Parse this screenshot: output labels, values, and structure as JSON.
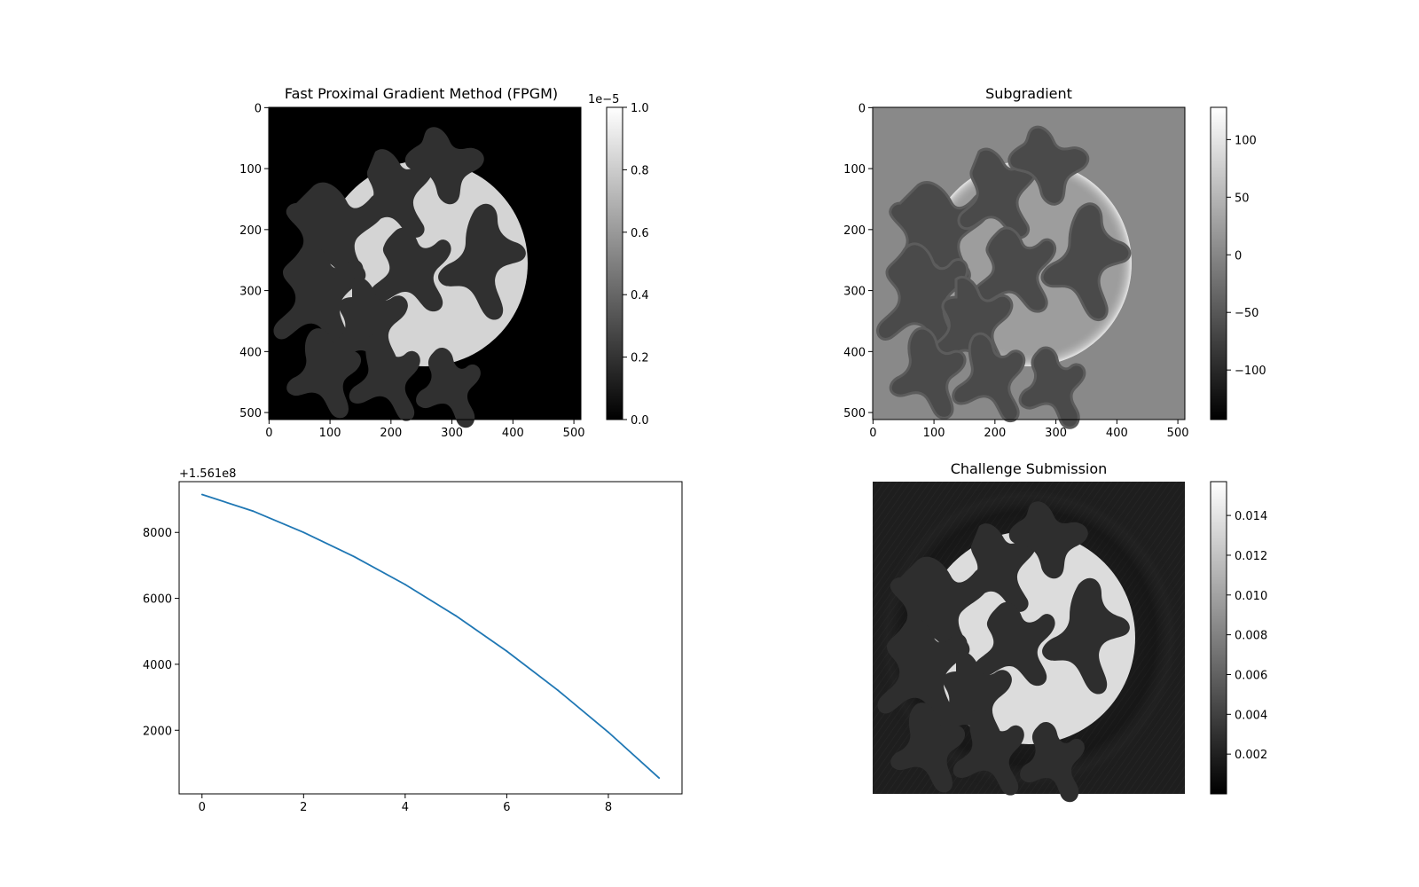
{
  "chart_data": [
    {
      "type": "heatmap",
      "title": "Fast Proximal Gradient Method (FPGM)",
      "xticks": [
        "0",
        "100",
        "200",
        "300",
        "400",
        "500"
      ],
      "yticks": [
        "0",
        "100",
        "200",
        "300",
        "400",
        "500"
      ],
      "xlim": [
        0,
        512
      ],
      "ylim": [
        512,
        0
      ],
      "colormap": "gray",
      "colorbar": {
        "ticks": [
          "0.0",
          "0.2",
          "0.4",
          "0.6",
          "0.8",
          "1.0"
        ],
        "offset_text": "1e−5",
        "range": [
          0,
          1e-05
        ]
      },
      "content": {
        "background_level": 0.0,
        "disk_level": 0.85,
        "hole_level": 0.2
      }
    },
    {
      "type": "heatmap",
      "title": "Subgradient",
      "xticks": [
        "0",
        "100",
        "200",
        "300",
        "400",
        "500"
      ],
      "yticks": [
        "0",
        "100",
        "200",
        "300",
        "400",
        "500"
      ],
      "xlim": [
        0,
        512
      ],
      "ylim": [
        512,
        0
      ],
      "colormap": "gray",
      "colorbar": {
        "ticks": [
          "100",
          "50",
          "0",
          "−50",
          "−100"
        ],
        "range": [
          -143,
          128
        ]
      },
      "content": {
        "background_level": 0.5,
        "disk_level": 0.6,
        "hole_level": 0.2
      }
    },
    {
      "type": "line",
      "title": "",
      "offset_text": "+1.561e8",
      "x": [
        0,
        1,
        2,
        3,
        4,
        5,
        6,
        7,
        8,
        9
      ],
      "xticks": [
        "0",
        "2",
        "4",
        "6",
        "8"
      ],
      "yticks": [
        "2000",
        "4000",
        "6000",
        "8000"
      ],
      "xlim": [
        -0.45,
        9.45
      ],
      "ylim": [
        70,
        9540
      ],
      "series": [
        {
          "values": [
            9150,
            8650,
            8000,
            7260,
            6420,
            5470,
            4400,
            3220,
            1940,
            550
          ],
          "color": "#1f77b4"
        }
      ]
    },
    {
      "type": "heatmap",
      "title": "Challenge Submission",
      "colormap": "gray",
      "colorbar": {
        "ticks": [
          "0.014",
          "0.012",
          "0.010",
          "0.008",
          "0.006",
          "0.004",
          "0.002"
        ],
        "range": [
          0,
          0.0157
        ]
      },
      "content": {
        "background_level": 0.12,
        "disk_level": 0.88,
        "hole_level": 0.18
      }
    }
  ]
}
